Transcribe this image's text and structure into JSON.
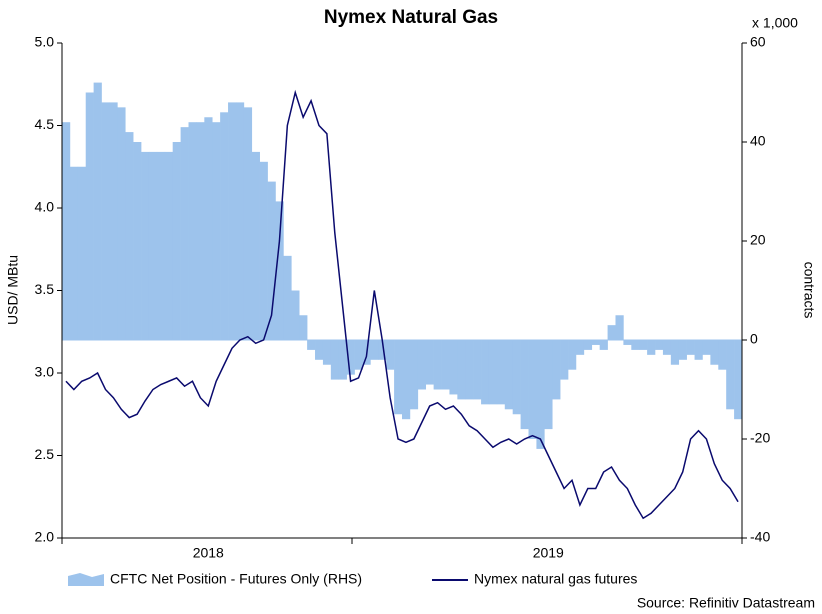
{
  "chart_data": {
    "type": "combo",
    "title": "Nymex Natural Gas",
    "ylabel": "USD/ MBtu",
    "y2label": "contracts",
    "y2unit": "x 1,000",
    "source": "Source: Refinitiv Datastream",
    "categories": [
      null,
      null,
      null,
      null,
      null,
      null,
      null,
      null,
      null,
      null,
      null,
      null,
      null,
      null,
      null,
      null,
      null,
      null,
      "2018",
      null,
      null,
      null,
      null,
      null,
      null,
      null,
      null,
      null,
      null,
      null,
      null,
      null,
      null,
      null,
      null,
      null,
      null,
      null,
      null,
      null,
      null,
      null,
      null,
      null,
      null,
      null,
      null,
      null,
      null,
      null,
      null,
      null,
      null,
      null,
      null,
      null,
      null,
      null,
      null,
      null,
      null,
      "2019",
      null,
      null,
      null,
      null,
      null,
      null,
      null,
      null,
      null,
      null,
      null,
      null,
      null,
      null,
      null,
      null,
      null,
      null,
      null,
      null,
      null,
      null,
      null,
      null
    ],
    "series": [
      {
        "name": "CFTC Net Position - Futures Only (RHS)",
        "type": "bar",
        "axis": "y2",
        "color": "#9dc3ec",
        "values": [
          44,
          35,
          35,
          50,
          52,
          48,
          48,
          47,
          42,
          40,
          38,
          38,
          38,
          38,
          40,
          43,
          44,
          44,
          45,
          44,
          46,
          48,
          48,
          47,
          38,
          36,
          32,
          28,
          17,
          10,
          5,
          -2,
          -4,
          -5,
          -8,
          -8,
          -7,
          -6,
          -5,
          -4,
          -4,
          -6,
          -15,
          -16,
          -14,
          -10,
          -9,
          -10,
          -10,
          -11,
          -12,
          -12,
          -12,
          -13,
          -13,
          -13,
          -14,
          -15,
          -18,
          -20,
          -22,
          -18,
          -12,
          -8,
          -6,
          -3,
          -2,
          -1,
          -2,
          3,
          5,
          -1,
          -2,
          -2,
          -3,
          -2,
          -3,
          -5,
          -4,
          -3,
          -4,
          -3,
          -5,
          -6,
          -14,
          -16
        ]
      },
      {
        "name": "Nymex natural gas futures",
        "type": "line",
        "color": "#0a0a6e",
        "values": [
          2.95,
          2.9,
          2.95,
          2.97,
          3.0,
          2.9,
          2.85,
          2.78,
          2.73,
          2.75,
          2.83,
          2.9,
          2.93,
          2.95,
          2.97,
          2.92,
          2.95,
          2.85,
          2.8,
          2.95,
          3.05,
          3.15,
          3.2,
          3.22,
          3.18,
          3.2,
          3.35,
          3.8,
          4.5,
          4.7,
          4.55,
          4.65,
          4.5,
          4.45,
          3.85,
          3.4,
          2.95,
          2.97,
          3.1,
          3.5,
          3.2,
          2.85,
          2.6,
          2.58,
          2.6,
          2.7,
          2.8,
          2.82,
          2.78,
          2.8,
          2.75,
          2.68,
          2.65,
          2.6,
          2.55,
          2.58,
          2.6,
          2.57,
          2.6,
          2.62,
          2.6,
          2.5,
          2.4,
          2.3,
          2.35,
          2.2,
          2.3,
          2.3,
          2.4,
          2.43,
          2.35,
          2.3,
          2.2,
          2.12,
          2.15,
          2.2,
          2.25,
          2.3,
          2.4,
          2.6,
          2.65,
          2.6,
          2.45,
          2.35,
          2.3,
          2.22
        ]
      }
    ],
    "ylim": [
      2,
      5
    ],
    "yticks": [
      {
        "value": 2,
        "label": "2.0"
      },
      {
        "value": 2.5,
        "label": "2.5"
      },
      {
        "value": 3,
        "label": "3.0"
      },
      {
        "value": 3.5,
        "label": "3.5"
      },
      {
        "value": 4,
        "label": "4.0"
      },
      {
        "value": 4.5,
        "label": "4.5"
      },
      {
        "value": 5,
        "label": "5.0"
      }
    ],
    "y2lim": [
      -40,
      60
    ],
    "y2ticks": [
      -40,
      -20,
      0,
      20,
      40,
      60
    ]
  }
}
